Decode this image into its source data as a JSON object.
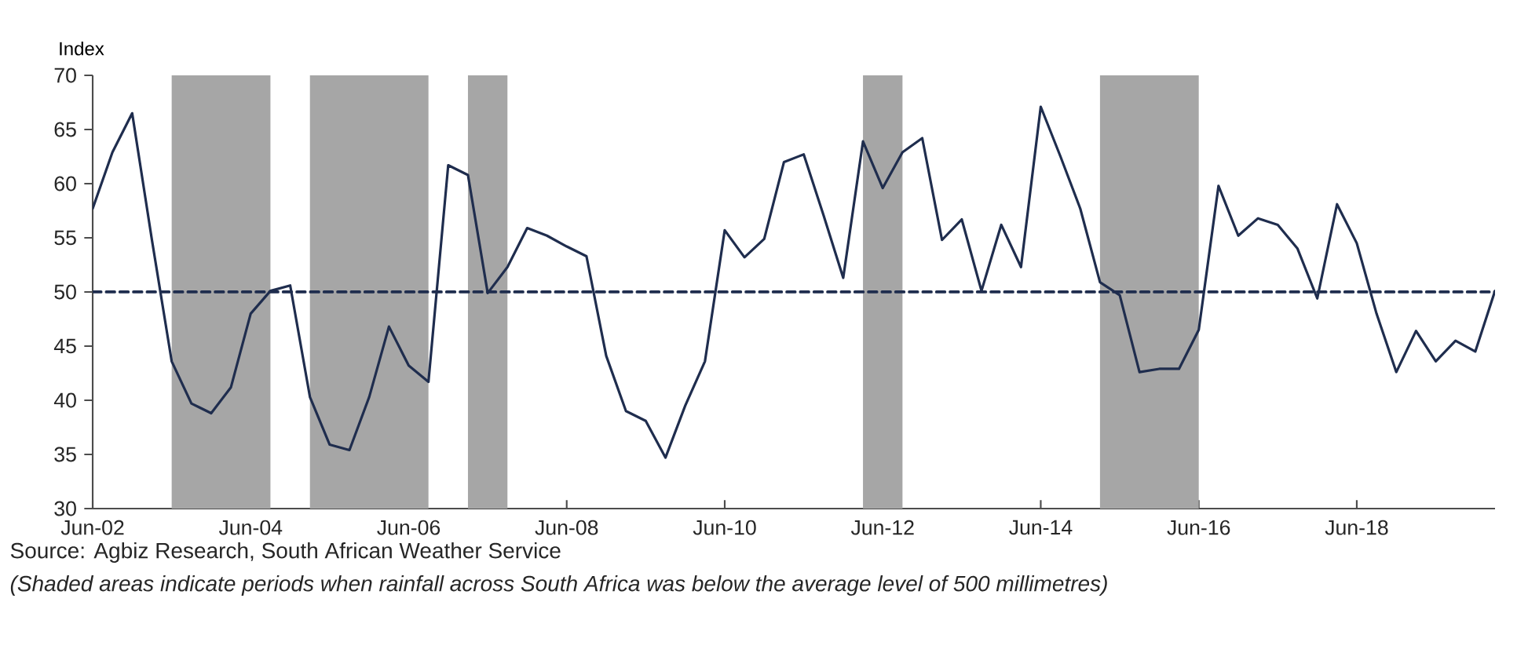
{
  "chart_data": {
    "type": "line",
    "ylabel": "Index",
    "x": [
      "2002-06",
      "2002-09",
      "2002-12",
      "2003-03",
      "2003-06",
      "2003-09",
      "2003-12",
      "2004-03",
      "2004-06",
      "2004-09",
      "2004-12",
      "2005-03",
      "2005-06",
      "2005-09",
      "2005-12",
      "2006-03",
      "2006-06",
      "2006-09",
      "2006-12",
      "2007-03",
      "2007-06",
      "2007-09",
      "2007-12",
      "2008-03",
      "2008-06",
      "2008-09",
      "2008-12",
      "2009-03",
      "2009-06",
      "2009-09",
      "2009-12",
      "2010-03",
      "2010-06",
      "2010-09",
      "2010-12",
      "2011-03",
      "2011-06",
      "2011-09",
      "2011-12",
      "2012-03",
      "2012-06",
      "2012-09",
      "2012-12",
      "2013-03",
      "2013-06",
      "2013-09",
      "2013-12",
      "2014-03",
      "2014-06",
      "2014-09",
      "2014-12",
      "2015-03",
      "2015-06",
      "2015-09",
      "2015-12",
      "2016-03",
      "2016-06",
      "2016-09",
      "2016-12",
      "2017-03",
      "2017-06",
      "2017-09",
      "2017-12",
      "2018-03",
      "2018-06",
      "2018-09",
      "2018-12",
      "2019-03",
      "2019-06",
      "2019-09",
      "2019-12",
      "2020-03"
    ],
    "series": [
      {
        "color": "#1f2d4e",
        "values": [
          57.7,
          62.9,
          66.5,
          54.8,
          43.6,
          39.7,
          38.8,
          41.2,
          48,
          50.1,
          50.6,
          40.3,
          35.9,
          35.4,
          40.3,
          46.8,
          43.2,
          41.7,
          61.7,
          60.8,
          49.9,
          52.3,
          55.9,
          55.2,
          54.2,
          53.3,
          44.1,
          39.0,
          38.1,
          34.7,
          39.5,
          43.6,
          55.7,
          53.2,
          54.9,
          62.0,
          62.7,
          57.1,
          51.3,
          63.9,
          59.6,
          62.9,
          64.2,
          54.8,
          56.7,
          50.1,
          56.2,
          52.3,
          67.1,
          62.5,
          57.7,
          50.9,
          49.7,
          42.6,
          42.9,
          42.9,
          46.5,
          59.8,
          55.2,
          56.8,
          56.2,
          54.0,
          49.4,
          58.1,
          54.5,
          48.0,
          42.6,
          46.4,
          43.6,
          45.5,
          44.5,
          50.1
        ]
      }
    ],
    "line_style": "solid",
    "marker": "none",
    "grid": false,
    "xlim": [
      "2002-06",
      "2020-03"
    ],
    "xticks": [
      {
        "value": "2002-06",
        "label": "Jun-02"
      },
      {
        "value": "2004-06",
        "label": "Jun-04"
      },
      {
        "value": "2006-06",
        "label": "Jun-06"
      },
      {
        "value": "2008-06",
        "label": "Jun-08"
      },
      {
        "value": "2010-06",
        "label": "Jun-10"
      },
      {
        "value": "2012-06",
        "label": "Jun-12"
      },
      {
        "value": "2014-06",
        "label": "Jun-14"
      },
      {
        "value": "2016-06",
        "label": "Jun-16"
      },
      {
        "value": "2018-06",
        "label": "Jun-18"
      }
    ],
    "ylim": [
      30,
      70
    ],
    "yticks": [
      30,
      35,
      40,
      45,
      50,
      55,
      60,
      65,
      70
    ],
    "ref_lines": [
      {
        "axis": "y",
        "value": 50,
        "color": "#1f2d4e",
        "line_style": "dashed"
      }
    ],
    "bands": [
      {
        "axis": "x",
        "from": "2003-06",
        "to": "2004-09",
        "color": "#a6a6a6"
      },
      {
        "axis": "x",
        "from": "2005-03",
        "to": "2006-09",
        "color": "#a6a6a6"
      },
      {
        "axis": "x",
        "from": "2007-03",
        "to": "2007-09",
        "color": "#a6a6a6"
      },
      {
        "axis": "x",
        "from": "2012-03",
        "to": "2012-09",
        "color": "#a6a6a6"
      },
      {
        "axis": "x",
        "from": "2015-03",
        "to": "2016-06",
        "color": "#a6a6a6"
      }
    ],
    "annotations": [
      "Source: Agbiz Research, South African Weather Service",
      "(Shaded areas indicate periods when rainfall across South Africa was below the average level of 500 millimetres)"
    ]
  }
}
